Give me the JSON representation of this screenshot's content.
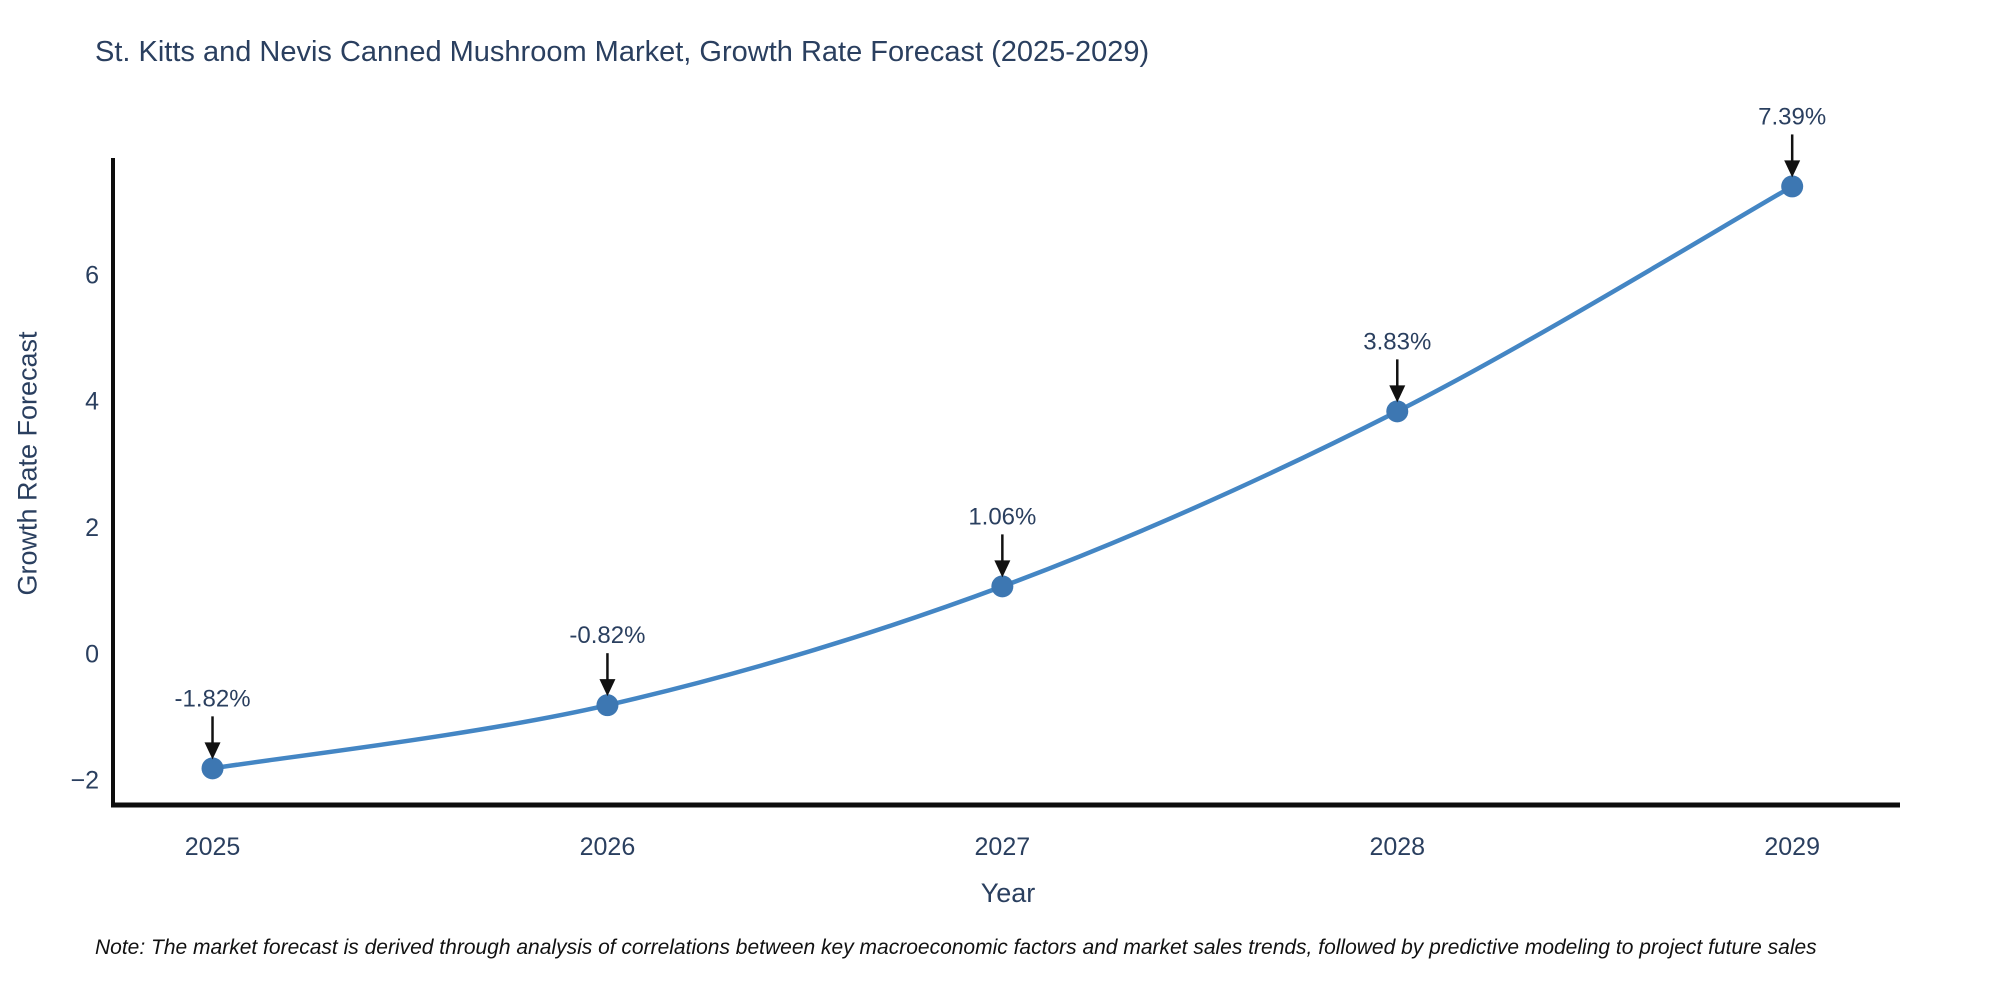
{
  "chart": {
    "title": "St. Kitts and Nevis Canned Mushroom Market, Growth Rate Forecast (2025-2029)",
    "xlabel": "Year",
    "ylabel": "Growth Rate Forecast"
  },
  "note": {
    "text": "Note: The market forecast is derived through analysis of correlations between key macroeconomic factors and market sales trends, followed by predictive modeling to project future sales"
  },
  "chart_data": {
    "type": "line",
    "title": "St. Kitts and Nevis Canned Mushroom Market, Growth Rate Forecast (2025-2029)",
    "xlabel": "Year",
    "ylabel": "Growth Rate Forecast",
    "x": [
      2025,
      2026,
      2027,
      2028,
      2029
    ],
    "series": [
      {
        "name": "Growth Rate Forecast",
        "values": [
          -1.82,
          -0.82,
          1.06,
          3.83,
          7.39
        ]
      }
    ],
    "point_labels": [
      "-1.82%",
      "-0.82%",
      "1.06%",
      "3.83%",
      "7.39%"
    ],
    "xticks": [
      2025,
      2026,
      2027,
      2028,
      2029
    ],
    "xtick_labels": [
      "2025",
      "2026",
      "2027",
      "2028",
      "2029"
    ],
    "yticks": [
      -2,
      0,
      2,
      4,
      6
    ],
    "ytick_labels": [
      "−2",
      "0",
      "2",
      "4",
      "6"
    ],
    "xlim": [
      2024.748,
      2029.273
    ],
    "ylim": [
      -2.4,
      7.84
    ],
    "grid": false,
    "legend": false,
    "line_shape": "spline",
    "colors": {
      "line": "#4486c4",
      "marker": "#3d77b2",
      "axis": "#0d0d0d",
      "text": "#2a3f5f",
      "arrow": "#111111"
    }
  }
}
